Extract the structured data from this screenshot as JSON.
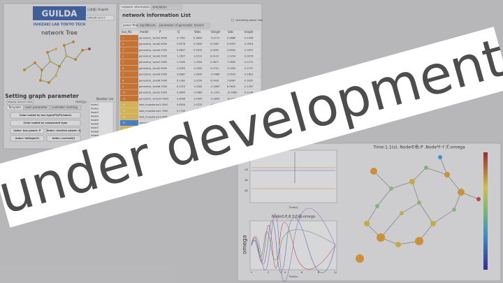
{
  "header": {
    "logo": "GUILDA",
    "lab": "ISHIZAKI LAB TOKYO TECH",
    "lang": "日本語 | English",
    "version": "GUILDA ver1.0"
  },
  "left": {
    "tree_title": "network Tree",
    "setting_title": "Setting graph parameter",
    "display_button": "display branch class",
    "reset": "reset",
    "tabs": [
      "Template",
      "each parameter",
      "controller marking"
    ],
    "buttons": [
      "Color-coded by bus type(PQ/PV/slack)",
      "Color-coded by component type",
      "index: bus power: P",
      "index: reactive power: Q",
      "index: Voltage(V)",
      "index: current(I)"
    ],
    "number_list_title": "Number List",
    "number_list": [
      "Node1",
      "Node2",
      "Node3",
      "Node4",
      "Node5",
      "Node6",
      "Node7",
      "Node8",
      "Node9",
      "Node10"
    ]
  },
  "main": {
    "tabs": [
      "network information",
      "simulation"
    ],
    "list_title": "network information List",
    "checkbox": "controlling power flow",
    "subtabs": [
      "power flow",
      "equilibrium",
      "parameter of generator",
      "branch"
    ],
    "columns": [
      "bus_No",
      "model",
      "P",
      "Q",
      "Vabs",
      "Vangle",
      "Iabs",
      "Iangle"
    ],
    "rows": [
      [
        "1",
        "generator_1axis",
        "0.6000",
        "0.7561",
        "0.9800",
        "-0.0172",
        "0.9886",
        "-0.1448"
      ],
      [
        "2",
        "generator_1axis",
        "0.6000",
        "0.6578",
        "0.9830",
        "0.0083",
        "0.9053",
        "-0.0504"
      ],
      [
        "3",
        "generator_1axis",
        "0.5700",
        "0.6637",
        "0.9970",
        "0.0092",
        "0.8590",
        "-0.0397"
      ],
      [
        "4",
        "generator_1axis",
        "0.5000",
        "1.1657",
        "1.0110",
        "0.0119",
        "1.1294",
        "-0.0076"
      ],
      [
        "5",
        "generator_1axis",
        "7.0000",
        "2.3445",
        "1.0000",
        "0.0677",
        "7.0695",
        "-0.1272"
      ],
      [
        "6",
        "generator_1axis",
        "5.6000",
        "2.6393",
        "1.0500",
        "0.0751",
        "5.9400",
        "-0.2737"
      ],
      [
        "7",
        "generator_1axis",
        "6.5000",
        "0.8867",
        "1.0630",
        "-0.0488",
        "5.9545",
        "-0.1802"
      ],
      [
        "8",
        "generator_1axis",
        "6.5000",
        "0.2381",
        "1.0250",
        "0.0430",
        "7.6087",
        "-0.0295"
      ],
      [
        "9",
        "generator_1axis",
        "8.3000",
        "0.1210",
        "1.0260",
        "-0.1683",
        "8.0620",
        "-0.1267"
      ],
      [
        "10",
        "generator_1axis",
        "2.5000",
        "0.8600",
        "1.0480",
        "-0.1341",
        "10.0460",
        "-0.1244"
      ],
      [
        "11",
        "generator_1axis",
        "10.0000",
        "2.8056",
        "1.0400",
        "-0.2850",
        "10.0730",
        "-0.3066"
      ],
      [
        "12",
        "load_impedance",
        "-2.0000",
        "0.8004",
        "1.0370",
        "-0.3331",
        "0.2823",
        "-0.7917"
      ],
      [
        "13",
        "load_impedance",
        "-0.7000",
        "0.7749",
        "1.0050",
        "-0.1012",
        "0.8000",
        "-0.1867"
      ],
      [
        "14",
        "load_impedance",
        "-3.0000",
        "-0.7613",
        "1.0006",
        "-0.2950",
        "10.0900",
        "-0.1667"
      ],
      [
        "15",
        "component_e",
        "0.0000",
        "0.0000",
        "1.0040",
        "-0.2948",
        "0.0000",
        "0.0000"
      ],
      [
        "16",
        "load_impedance",
        "-0.3200",
        "-1.0200",
        "1.0060",
        "-0.0400",
        "0.2620",
        "-0.3810"
      ],
      [
        "17",
        "load_impedance",
        "-0.6300",
        "-0.8100",
        "1.0090",
        "-0.0940",
        "0.7580",
        "-0.0890"
      ]
    ]
  },
  "plots": {
    "top_xlabel": "Time(s)",
    "top_yticks": [
      "-20",
      "-40",
      "-60",
      "-80"
    ],
    "bottom_title": "Nodeの大きさの値:omega",
    "bottom_ylabel": "omega",
    "bottom_xticks": [
      "0",
      "2",
      "4",
      "6",
      "8",
      "10"
    ],
    "bottom_xlabel": "Time(s)",
    "network_title": "Time:1.1(s), Nodeの色:P ,Nodeサイズ:omega"
  },
  "banner": "under development"
}
